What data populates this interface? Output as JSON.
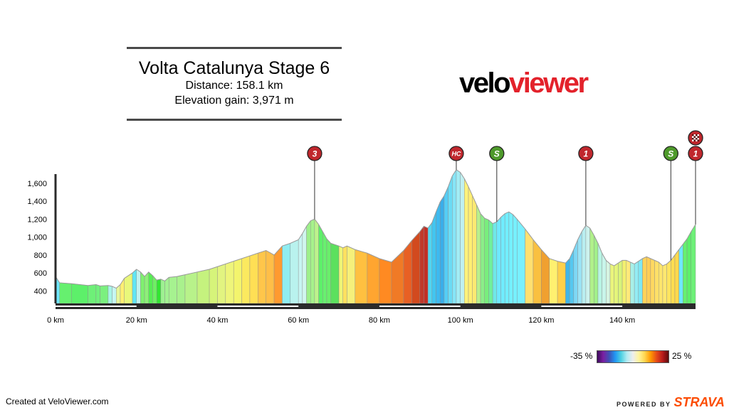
{
  "header": {
    "title": "Volta Catalunya Stage 6",
    "distance_text": "Distance: 158.1 km",
    "elevation_text": "Elevation gain: 3,971 m"
  },
  "logo": {
    "part_a": "velo",
    "part_b": "viewer"
  },
  "legend": {
    "min_label": "-35 %",
    "max_label": "25 %"
  },
  "footer": {
    "left_text": "Created at VeloViewer.com",
    "powered_by": "POWERED BY",
    "brand": "STRAVA"
  },
  "colors": {
    "logo_accent": "#e3222b",
    "strava": "#fc4c02",
    "marker_red": "#c0272d",
    "marker_green": "#4e9a2b"
  },
  "chart_data": {
    "type": "area",
    "x_unit": "km",
    "y_unit": "m",
    "xlim": [
      0,
      158.1
    ],
    "ylim": [
      260,
      1820
    ],
    "x_ticks": [
      0,
      20,
      40,
      60,
      80,
      100,
      120,
      140
    ],
    "x_tick_labels": [
      "0 km",
      "20 km",
      "40 km",
      "60 km",
      "80 km",
      "100 km",
      "120 km",
      "140 km"
    ],
    "y_ticks": [
      400,
      600,
      800,
      1000,
      1200,
      1400,
      1600
    ],
    "y_tick_labels": [
      "400",
      "600",
      "800",
      "1,000",
      "1,200",
      "1,400",
      "1,600"
    ],
    "grid": false,
    "profile": [
      [
        0,
        560
      ],
      [
        1,
        490
      ],
      [
        4,
        480
      ],
      [
        8,
        460
      ],
      [
        10,
        470
      ],
      [
        11,
        455
      ],
      [
        13,
        460
      ],
      [
        14,
        450
      ],
      [
        15,
        430
      ],
      [
        16,
        470
      ],
      [
        17,
        540
      ],
      [
        19,
        600
      ],
      [
        20,
        640
      ],
      [
        21,
        610
      ],
      [
        22,
        560
      ],
      [
        23,
        610
      ],
      [
        24,
        570
      ],
      [
        25,
        520
      ],
      [
        26,
        530
      ],
      [
        27,
        510
      ],
      [
        28,
        550
      ],
      [
        30,
        560
      ],
      [
        32,
        580
      ],
      [
        35,
        610
      ],
      [
        38,
        640
      ],
      [
        40,
        670
      ],
      [
        42,
        700
      ],
      [
        44,
        730
      ],
      [
        46,
        760
      ],
      [
        48,
        790
      ],
      [
        50,
        820
      ],
      [
        52,
        850
      ],
      [
        54,
        800
      ],
      [
        56,
        900
      ],
      [
        58,
        930
      ],
      [
        60,
        970
      ],
      [
        61,
        1040
      ],
      [
        62,
        1120
      ],
      [
        63,
        1180
      ],
      [
        64,
        1200
      ],
      [
        65,
        1140
      ],
      [
        66,
        1060
      ],
      [
        67,
        980
      ],
      [
        68,
        930
      ],
      [
        70,
        900
      ],
      [
        71,
        880
      ],
      [
        72,
        900
      ],
      [
        74,
        860
      ],
      [
        77,
        820
      ],
      [
        80,
        760
      ],
      [
        83,
        720
      ],
      [
        86,
        850
      ],
      [
        88,
        960
      ],
      [
        90,
        1060
      ],
      [
        91,
        1120
      ],
      [
        92,
        1100
      ],
      [
        93,
        1160
      ],
      [
        94,
        1280
      ],
      [
        95,
        1390
      ],
      [
        96,
        1460
      ],
      [
        97,
        1560
      ],
      [
        98,
        1680
      ],
      [
        99,
        1750
      ],
      [
        100,
        1720
      ],
      [
        101,
        1650
      ],
      [
        102,
        1560
      ],
      [
        103,
        1460
      ],
      [
        104,
        1360
      ],
      [
        105,
        1260
      ],
      [
        106,
        1210
      ],
      [
        107,
        1190
      ],
      [
        108,
        1150
      ],
      [
        109,
        1170
      ],
      [
        110,
        1220
      ],
      [
        111,
        1260
      ],
      [
        112,
        1280
      ],
      [
        113,
        1250
      ],
      [
        114,
        1200
      ],
      [
        116,
        1090
      ],
      [
        118,
        970
      ],
      [
        120,
        860
      ],
      [
        122,
        760
      ],
      [
        124,
        730
      ],
      [
        126,
        710
      ],
      [
        127,
        760
      ],
      [
        128,
        860
      ],
      [
        129,
        970
      ],
      [
        130,
        1060
      ],
      [
        131,
        1130
      ],
      [
        132,
        1100
      ],
      [
        133,
        1020
      ],
      [
        134,
        930
      ],
      [
        135,
        820
      ],
      [
        136,
        740
      ],
      [
        137,
        700
      ],
      [
        138,
        680
      ],
      [
        139,
        710
      ],
      [
        140,
        740
      ],
      [
        141,
        740
      ],
      [
        142,
        720
      ],
      [
        143,
        700
      ],
      [
        144,
        730
      ],
      [
        145,
        760
      ],
      [
        146,
        780
      ],
      [
        147,
        760
      ],
      [
        148,
        740
      ],
      [
        149,
        720
      ],
      [
        150,
        680
      ],
      [
        151,
        700
      ],
      [
        152,
        740
      ],
      [
        153,
        800
      ],
      [
        154,
        860
      ],
      [
        155,
        920
      ],
      [
        156,
        980
      ],
      [
        157,
        1060
      ],
      [
        158.1,
        1140
      ]
    ],
    "segment_colors": [
      "#6fe8ff",
      "#66f06f",
      "#5df06a",
      "#6ef078",
      "#70f07c",
      "#7bf080",
      "#a8f4e8",
      "#c6f6f2",
      "#e8f79b",
      "#ffef72",
      "#e9f77a",
      "#60e6f5",
      "#c0f3ef",
      "#7ff06f",
      "#8ef079",
      "#56ee54",
      "#6ef063",
      "#32e632",
      "#9ef191",
      "#a3f292",
      "#a6f290",
      "#a9f18d",
      "#b8f28a",
      "#c5f27e",
      "#d6f47a",
      "#e2f480",
      "#eef57a",
      "#f3f46d",
      "#fbe95f",
      "#ffdf55",
      "#ffc64a",
      "#ffbe48",
      "#ff9a30",
      "#8fedf1",
      "#b9f2ee",
      "#c7f4f2",
      "#d0f6ee",
      "#9ef08b",
      "#a5f28b",
      "#bdf38c",
      "#5df06a",
      "#68f06f",
      "#6aee6b",
      "#5ce05e",
      "#eef577",
      "#ffe060",
      "#f5f07a",
      "#ffc040",
      "#ffa530",
      "#ff8a22",
      "#f07a26",
      "#e86024",
      "#d24a1e",
      "#c0392b",
      "#c22f26",
      "#52d6f2",
      "#42c5f0",
      "#3dbaf0",
      "#3aaeea",
      "#55cdf5",
      "#6bdcf5",
      "#86e5f7",
      "#a2edf5",
      "#bff0f0",
      "#fff37a",
      "#ffef72",
      "#fbe972",
      "#b8f08c",
      "#8bee88",
      "#79ee7d",
      "#70f09c",
      "#6fe8e8",
      "#6fe8ff",
      "#70ecff",
      "#72efff",
      "#75f0ff",
      "#77f0ff",
      "#79f0ff",
      "#ffe070",
      "#f9c040",
      "#f0a030",
      "#fff070",
      "#ffd04a",
      "#3fb6ea",
      "#56c8f0",
      "#7ed8f5",
      "#9be3f5",
      "#b9eef0",
      "#ccf2ee",
      "#b0f08a",
      "#a2f08a",
      "#b8f4e4",
      "#c8f5ea",
      "#d6f5e2",
      "#eaf57c",
      "#e4f57a",
      "#d8f47a",
      "#f3f070",
      "#ffe97a",
      "#a8f0e8",
      "#93ecf4",
      "#7fe8f5",
      "#ffd35a",
      "#ffce58",
      "#ffd860",
      "#ffe068",
      "#ffe56c",
      "#ffe870",
      "#ffe460",
      "#ffdd50",
      "#ffd94b"
    ],
    "markers": [
      {
        "km": 64,
        "label": "3",
        "type": "climb-cat"
      },
      {
        "km": 99,
        "label": "HC",
        "type": "climb-cat"
      },
      {
        "km": 109,
        "label": "S",
        "type": "sprint"
      },
      {
        "km": 131,
        "label": "1",
        "type": "climb-cat"
      },
      {
        "km": 152,
        "label": "S",
        "type": "sprint"
      },
      {
        "km": 158.1,
        "label": "1",
        "type": "climb-cat"
      },
      {
        "km": 158.1,
        "label": "",
        "type": "finish"
      }
    ]
  }
}
